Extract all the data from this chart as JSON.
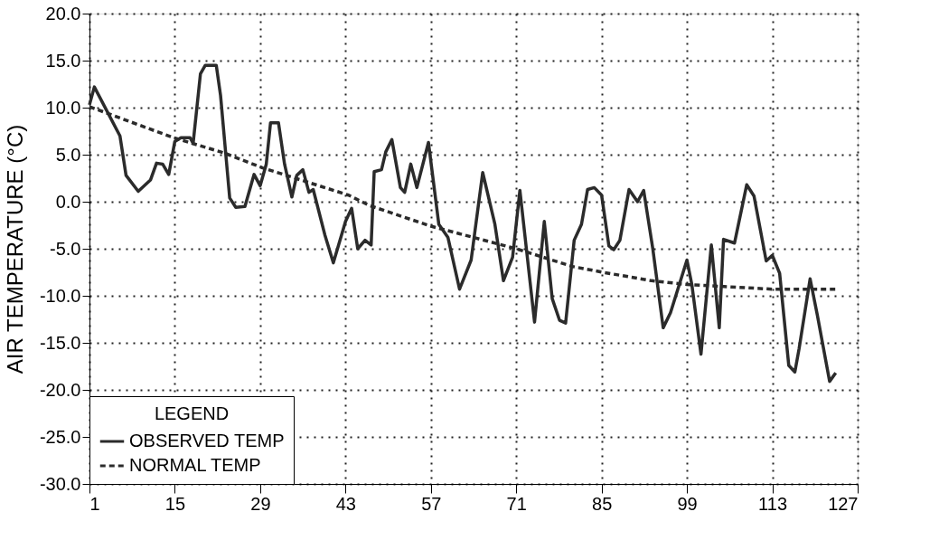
{
  "chart_data": {
    "type": "line",
    "ylabel": "AIR TEMPERATURE (°C)",
    "legend_title": "LEGEND",
    "legend": "bottom left",
    "grid": true,
    "marker": "none",
    "xlim": [
      1,
      127
    ],
    "xticks": [
      1,
      15,
      29,
      43,
      57,
      71,
      85,
      99,
      113,
      127
    ],
    "ylim": [
      -30,
      20
    ],
    "yticks": [
      {
        "value": -30,
        "label": "-30.0"
      },
      {
        "value": -25,
        "label": "-25.0"
      },
      {
        "value": -20,
        "label": "-20.0"
      },
      {
        "value": -15,
        "label": "-15.0"
      },
      {
        "value": -10,
        "label": "-10.0"
      },
      {
        "value": -5,
        "label": "-5.0"
      },
      {
        "value": 0,
        "label": "0.0"
      },
      {
        "value": 5,
        "label": "5.0"
      },
      {
        "value": 10,
        "label": "10.0"
      },
      {
        "value": 15,
        "label": "15.0"
      },
      {
        "value": 20,
        "label": "20.0"
      }
    ],
    "series": [
      {
        "name": "OBSERVED TEMP",
        "color": "#2b2b2b",
        "line_style": "solid",
        "x": [
          1,
          1.8,
          6,
          7,
          9,
          11,
          12,
          13,
          14,
          15,
          16,
          17.5,
          18,
          19.2,
          20,
          21.8,
          22.5,
          24,
          25,
          26.5,
          28,
          29,
          30,
          30.7,
          32,
          33,
          34.2,
          35,
          36,
          37,
          37.7,
          39.6,
          41,
          43,
          44,
          45,
          46.2,
          47.2,
          47.7,
          48.9,
          49.6,
          50.6,
          52,
          52.7,
          53.7,
          54.7,
          56.6,
          58.3,
          59.8,
          61.7,
          63.6,
          65.5,
          67.5,
          68.9,
          70.4,
          71.6,
          74,
          75.6,
          76.9,
          78.1,
          79.1,
          80.5,
          81.7,
          82.7,
          83.8,
          85,
          86.2,
          87,
          88,
          89.5,
          90.9,
          91.9,
          93.4,
          95.1,
          96.3,
          99,
          99.8,
          101.3,
          103,
          104.3,
          105,
          106.8,
          108.8,
          110,
          112,
          113,
          114.2,
          115.7,
          116.7,
          117.4,
          119.2,
          120.4,
          122.4,
          123.4
        ],
        "values": [
          10.3,
          12.2,
          7.0,
          2.8,
          1.1,
          2.3,
          4.1,
          4.0,
          2.9,
          6.4,
          6.8,
          6.8,
          6.2,
          13.6,
          14.5,
          14.5,
          11.3,
          0.4,
          -0.6,
          -0.5,
          2.9,
          1.7,
          4.0,
          8.4,
          8.4,
          4.0,
          0.5,
          2.8,
          3.4,
          1.0,
          1.3,
          -3.5,
          -6.5,
          -2.1,
          -0.7,
          -5.0,
          -4.1,
          -4.6,
          3.2,
          3.4,
          5.3,
          6.6,
          1.5,
          1.0,
          4.0,
          1.5,
          6.3,
          -2.4,
          -3.8,
          -9.3,
          -6.2,
          3.1,
          -2.4,
          -8.4,
          -5.9,
          1.2,
          -12.8,
          -2.1,
          -10.3,
          -12.6,
          -12.9,
          -4.1,
          -2.4,
          1.3,
          1.5,
          0.7,
          -4.7,
          -5.1,
          -4.1,
          1.3,
          0.0,
          1.2,
          -5.0,
          -13.4,
          -11.8,
          -6.2,
          -8.8,
          -16.2,
          -4.6,
          -13.4,
          -4.0,
          -4.4,
          1.8,
          0.6,
          -6.3,
          -5.7,
          -7.6,
          -17.4,
          -18.1,
          -15.6,
          -8.2,
          -12.1,
          -19.1,
          -18.2
        ]
      },
      {
        "name": "NORMAL TEMP",
        "color": "#2b2b2b",
        "line_style": "dashed",
        "x": [
          1,
          14.8,
          23,
          29.4,
          43.5,
          46.9,
          57,
          71,
          80.3,
          85.2,
          93.2,
          99,
          113,
          123.4
        ],
        "values": [
          10.1,
          6.8,
          5.2,
          3.6,
          0.7,
          -0.4,
          -2.6,
          -5.0,
          -6.9,
          -7.5,
          -8.4,
          -8.8,
          -9.3,
          -9.3
        ]
      }
    ]
  }
}
